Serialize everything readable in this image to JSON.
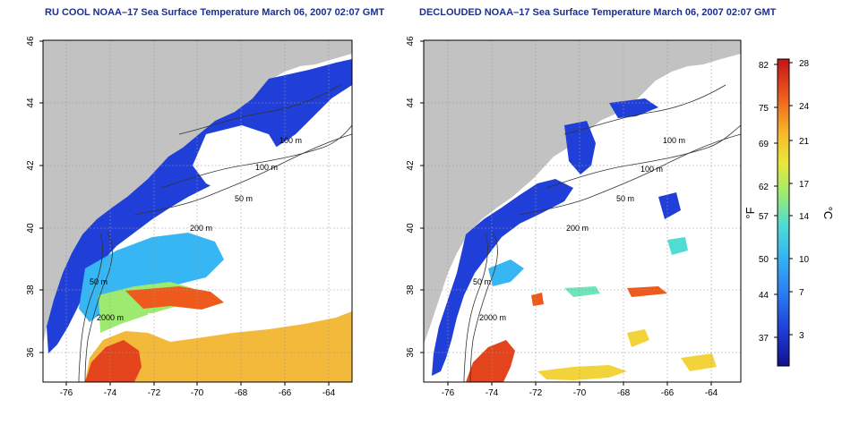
{
  "panels": [
    {
      "title": "RU COOL NOAA–17 Sea Surface Temperature March 06, 2007 02:07 GMT",
      "contour_labels": [
        "100 m",
        "100 m",
        "50 m",
        "200 m",
        "50 m",
        "2000 m"
      ]
    },
    {
      "title": "DECLOUDED NOAA–17 Sea Surface Temperature March 06, 2007 02:07 GMT",
      "contour_labels": [
        "100 m",
        "100 m",
        "50 m",
        "200 m",
        "50 m",
        "2000 m"
      ]
    }
  ],
  "axes": {
    "x_ticks": [
      "-76",
      "-74",
      "-72",
      "-70",
      "-68",
      "-66",
      "-64"
    ],
    "y_ticks": [
      "36",
      "38",
      "40",
      "42",
      "44",
      "46"
    ]
  },
  "colorbar": {
    "fahrenheit_ticks": [
      "82",
      "75",
      "69",
      "62",
      "57",
      "50",
      "44",
      "37"
    ],
    "celsius_ticks": [
      "28",
      "24",
      "21",
      "17",
      "14",
      "10",
      "7",
      "3"
    ],
    "unit_f": "°F",
    "unit_c": "°C",
    "colors": [
      "#1a1aa8",
      "#1f4fe0",
      "#2b8ff2",
      "#3fc7f0",
      "#6fe6b8",
      "#b8ef5a",
      "#f3e43a",
      "#f6a52a",
      "#ef5a1c",
      "#c8141a"
    ]
  },
  "colors": {
    "land": "#c2c2c2",
    "title": "#1c2f8f"
  }
}
